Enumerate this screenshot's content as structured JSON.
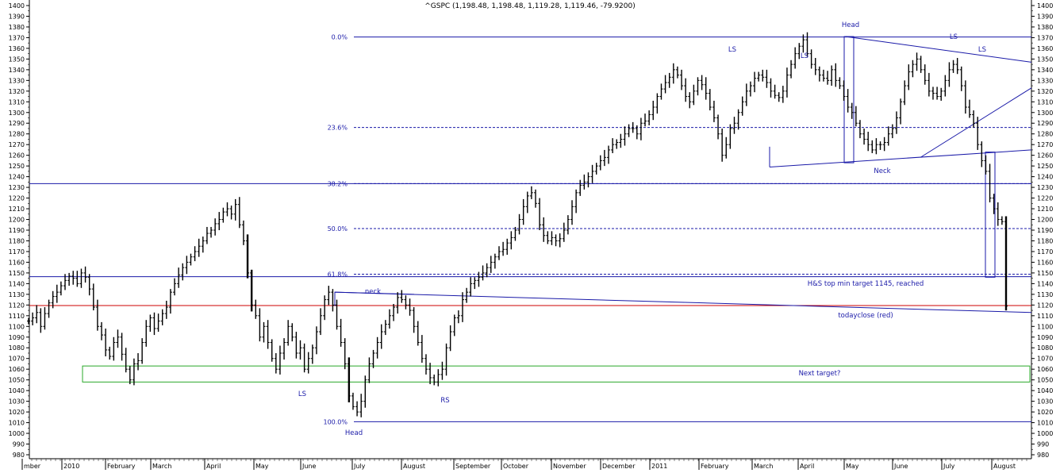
{
  "chart_data": {
    "type": "line",
    "title": "^GSPC (1,198.48, 1,198.48, 1,119.28, 1,119.46, -79.9200)",
    "ylim": [
      975,
      1405
    ],
    "y_ticks": [
      980,
      990,
      1000,
      1010,
      1020,
      1030,
      1040,
      1050,
      1060,
      1070,
      1080,
      1090,
      1100,
      1110,
      1120,
      1130,
      1140,
      1150,
      1160,
      1170,
      1180,
      1190,
      1200,
      1210,
      1220,
      1230,
      1240,
      1250,
      1260,
      1270,
      1280,
      1290,
      1300,
      1310,
      1320,
      1330,
      1340,
      1350,
      1360,
      1370,
      1380,
      1390,
      1400
    ],
    "x_labels": [
      "mber",
      "2010",
      "February",
      "March",
      "April",
      "May",
      "June",
      "July",
      "August",
      "September",
      "October",
      "November",
      "December",
      "2011",
      "February",
      "March",
      "April",
      "May",
      "June",
      "July",
      "August"
    ],
    "series": [
      {
        "values": [
          1105,
          1108,
          1113,
          1100,
          1112,
          1122,
          1128,
          1132,
          1138,
          1143,
          1147,
          1145,
          1140,
          1150,
          1146,
          1135,
          1118,
          1100,
          1092,
          1078,
          1072,
          1085,
          1090,
          1074,
          1060,
          1050,
          1065,
          1068,
          1085,
          1100,
          1108,
          1098,
          1105,
          1112,
          1118,
          1132,
          1140,
          1148,
          1155,
          1160,
          1165,
          1170,
          1175,
          1180,
          1187,
          1190,
          1196,
          1200,
          1207,
          1210,
          1205,
          1214,
          1195,
          1180,
          1150,
          1120,
          1110,
          1090,
          1100,
          1085,
          1070,
          1060,
          1075,
          1085,
          1100,
          1090,
          1075,
          1080,
          1060,
          1070,
          1080,
          1095,
          1110,
          1125,
          1132,
          1120,
          1100,
          1085,
          1065,
          1035,
          1025,
          1020,
          1030,
          1050,
          1065,
          1075,
          1085,
          1095,
          1102,
          1110,
          1118,
          1127,
          1125,
          1120,
          1115,
          1100,
          1085,
          1070,
          1060,
          1052,
          1048,
          1055,
          1060,
          1080,
          1095,
          1108,
          1110,
          1125,
          1132,
          1140,
          1143,
          1146,
          1150,
          1155,
          1160,
          1165,
          1170,
          1172,
          1178,
          1183,
          1190,
          1200,
          1212,
          1222,
          1225,
          1215,
          1195,
          1185,
          1180,
          1183,
          1180,
          1182,
          1190,
          1200,
          1212,
          1225,
          1232,
          1235,
          1240,
          1245,
          1250,
          1255,
          1258,
          1265,
          1270,
          1272,
          1275,
          1280,
          1285,
          1285,
          1280,
          1290,
          1292,
          1298,
          1305,
          1315,
          1322,
          1328,
          1333,
          1340,
          1335,
          1325,
          1315,
          1310,
          1320,
          1330,
          1326,
          1318,
          1305,
          1295,
          1280,
          1260,
          1270,
          1285,
          1290,
          1300,
          1310,
          1320,
          1325,
          1332,
          1335,
          1333,
          1328,
          1320,
          1316,
          1314,
          1320,
          1335,
          1345,
          1355,
          1362,
          1368,
          1355,
          1345,
          1340,
          1335,
          1332,
          1330,
          1340,
          1330,
          1325,
          1315,
          1305,
          1300,
          1290,
          1280,
          1275,
          1270,
          1265,
          1270,
          1270,
          1272,
          1280,
          1285,
          1295,
          1310,
          1325,
          1338,
          1345,
          1350,
          1340,
          1330,
          1320,
          1318,
          1315,
          1320,
          1330,
          1340,
          1345,
          1340,
          1325,
          1305,
          1298,
          1290,
          1270,
          1255,
          1245,
          1220,
          1210,
          1200,
          1198,
          1119
        ]
      }
    ],
    "fib_levels": [
      {
        "label": "0.0%",
        "value": 1370.58
      },
      {
        "label": "23.6%",
        "value": 1286
      },
      {
        "label": "38.2%",
        "value": 1233.5
      },
      {
        "label": "50.0%",
        "value": 1191.5
      },
      {
        "label": "61.8%",
        "value": 1148.8
      },
      {
        "label": "100.0%",
        "value": 1010.9
      }
    ],
    "annotations": [
      {
        "text": "Head",
        "color": "#1a1aa8"
      },
      {
        "text": "LS",
        "color": "#1a1aa8"
      },
      {
        "text": "LS",
        "color": "#1a1aa8"
      },
      {
        "text": "LS",
        "color": "#1a1aa8"
      },
      {
        "text": "LS",
        "color": "#1a1aa8"
      },
      {
        "text": "Neck",
        "color": "#1a1aa8"
      },
      {
        "text": "neck",
        "color": "#1a1aa8"
      },
      {
        "text": "LS",
        "color": "#1a1aa8"
      },
      {
        "text": "RS",
        "color": "#1a1aa8"
      },
      {
        "text": "Head",
        "color": "#1a1aa8"
      },
      {
        "text": "H&S top min target 1145, reached",
        "color": "#1a1aa8"
      },
      {
        "text": "todayclose (red)",
        "color": "#1a1aa8"
      },
      {
        "text": "Next target?",
        "color": "#1a1aa8"
      }
    ],
    "grid": false,
    "colors": {
      "bars": "#000000",
      "lines": "#1a1aa8",
      "close_line": "#cc0000",
      "target_box": "#2aa82a",
      "text": "#1a1aa8"
    }
  }
}
